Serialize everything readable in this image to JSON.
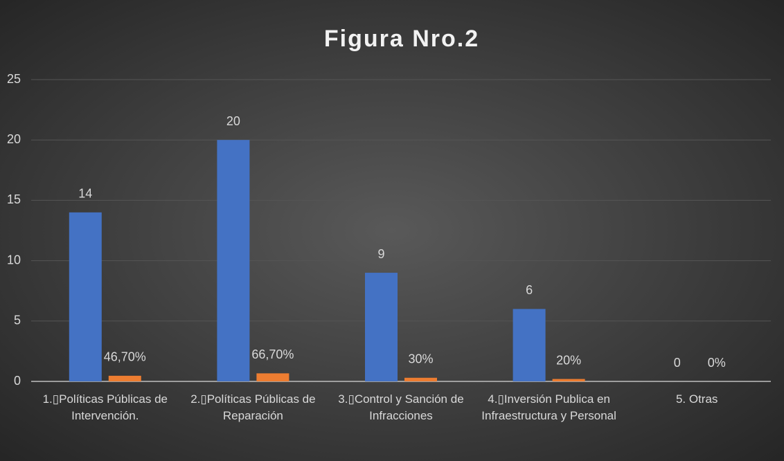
{
  "chart_data": {
    "type": "bar",
    "title": "Figura Nro.2",
    "categories": [
      "1.▯Políticas Públicas de Intervención.",
      "2.▯Políticas Públicas de Reparación",
      "3.▯Control y Sanción de Infracciones",
      "4.▯Inversión Publica en Infraestructura y Personal",
      "5. Otras"
    ],
    "series": [
      {
        "color": "#4472c4",
        "values": [
          14,
          20,
          9,
          6,
          0
        ]
      },
      {
        "color": "#ed7d31",
        "values": [
          0.467,
          0.667,
          0.3,
          0.2,
          0
        ],
        "value_labels": [
          "46,70%",
          "66,70%",
          "30%",
          "20%",
          "0%"
        ]
      }
    ],
    "ylim": [
      0,
      25
    ],
    "yticks": [
      0,
      5,
      10,
      15,
      20,
      25
    ],
    "grid": true
  }
}
